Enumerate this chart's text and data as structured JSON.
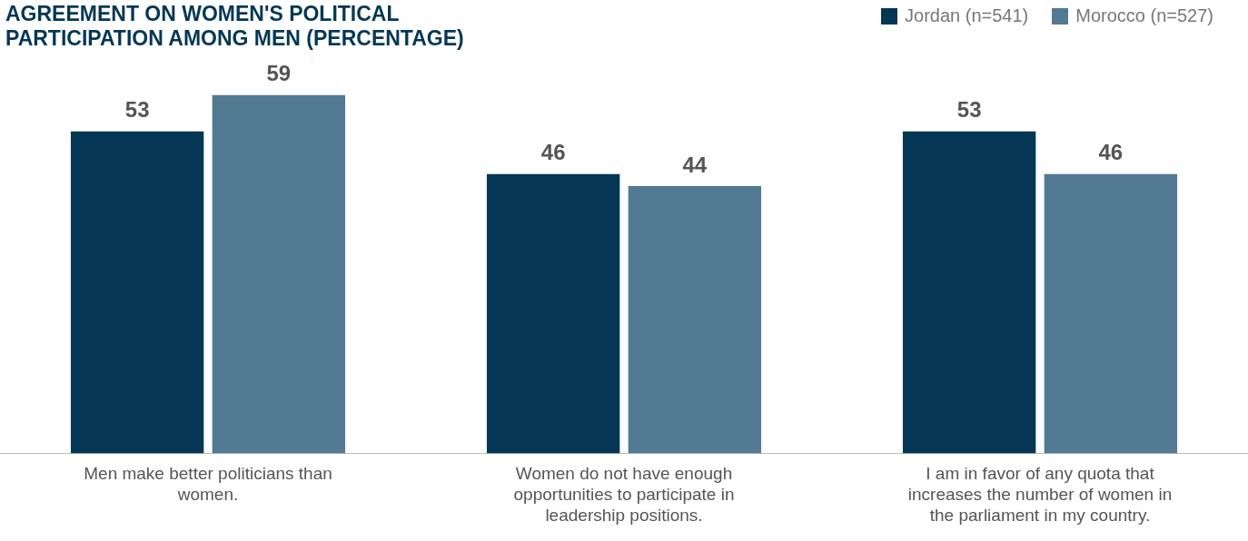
{
  "chart_data": {
    "type": "bar",
    "title": "AGREEMENT ON WOMEN'S POLITICAL PARTICIPATION AMONG MEN (PERCENTAGE)",
    "categories": [
      "Men make better politicians than women.",
      "Women do not have enough opportunities to participate in leadership positions.",
      "I am in favor of any quota that increases the number of women in the parliament in my country."
    ],
    "series": [
      {
        "name": "Jordan (n=541)",
        "color": "#043754",
        "values": [
          53,
          46,
          53
        ]
      },
      {
        "name": "Morocco (n=527)",
        "color": "#527a92",
        "values": [
          59,
          44,
          46
        ]
      }
    ],
    "data_labels": true,
    "legend": "top right"
  }
}
